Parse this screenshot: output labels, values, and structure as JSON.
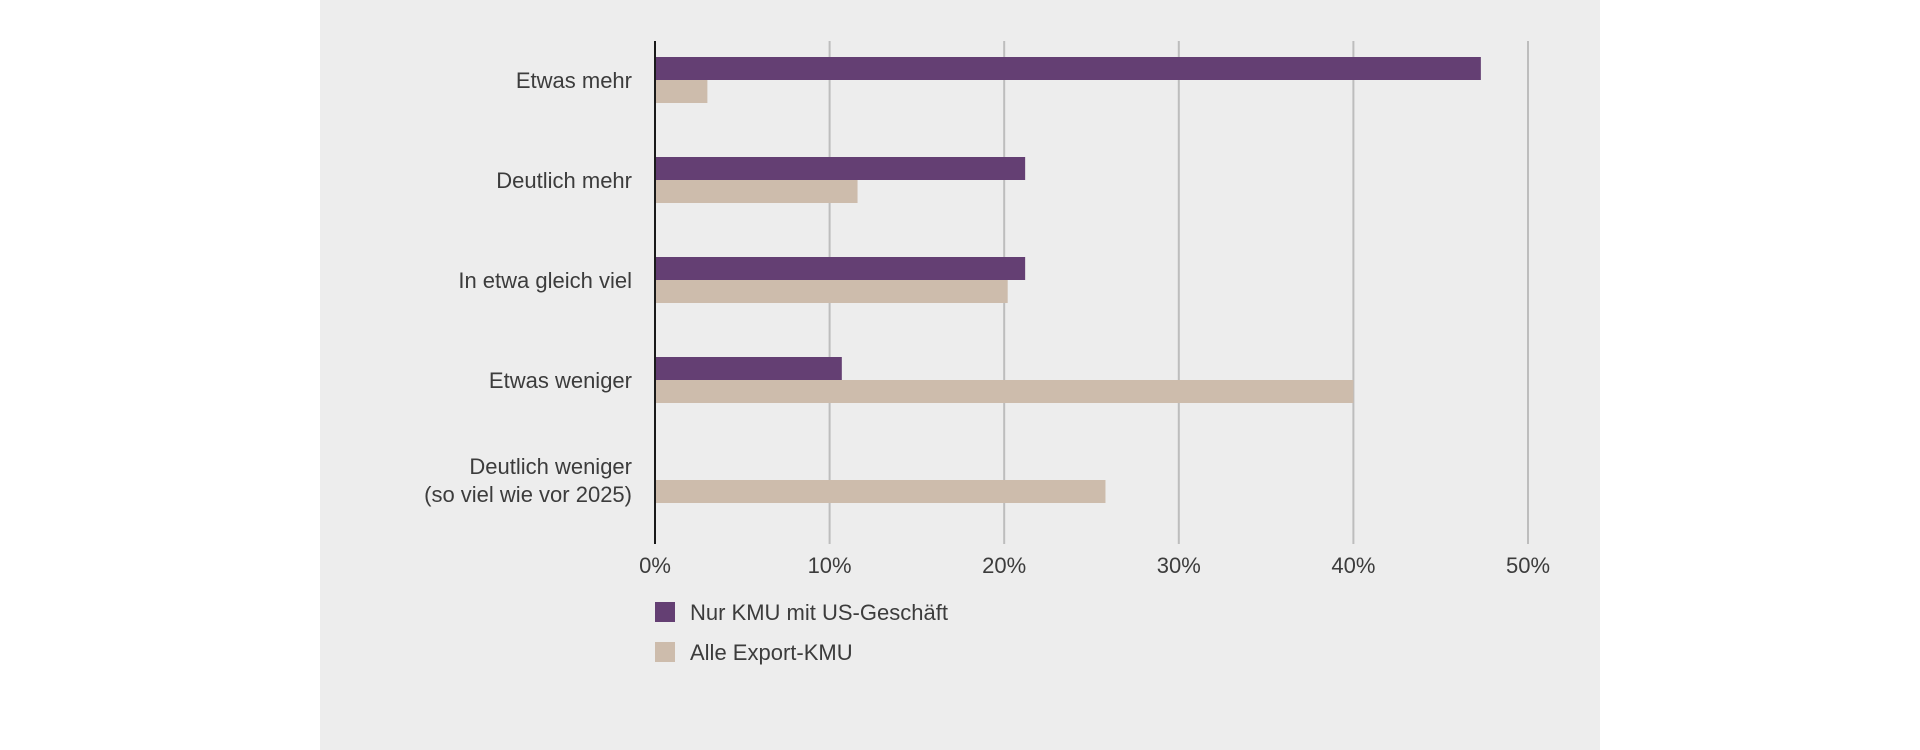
{
  "chart_data": {
    "type": "bar",
    "orientation": "horizontal",
    "categories": [
      [
        "Etwas mehr"
      ],
      [
        "Deutlich mehr"
      ],
      [
        "In etwa gleich viel"
      ],
      [
        "Etwas weniger"
      ],
      [
        "Deutlich weniger",
        "(so viel wie vor 2025)"
      ]
    ],
    "series": [
      {
        "name": "Nur KMU mit US-Geschäft",
        "color": "#643f73",
        "values": [
          47.3,
          21.2,
          21.2,
          10.7,
          0
        ]
      },
      {
        "name": "Alle Export-KMU",
        "color": "#cdbcac",
        "values": [
          3.0,
          11.6,
          20.2,
          40.0,
          25.8
        ]
      }
    ],
    "xlim": [
      0,
      50
    ],
    "xticks": [
      0,
      10,
      20,
      30,
      40,
      50
    ],
    "xtick_labels": [
      "0%",
      "10%",
      "20%",
      "30%",
      "40%",
      "50%"
    ],
    "grid": "vertical",
    "legend_position": "bottom-left",
    "gridline_color": "#bdbdbd",
    "axis_color": "#1a1a1a"
  }
}
